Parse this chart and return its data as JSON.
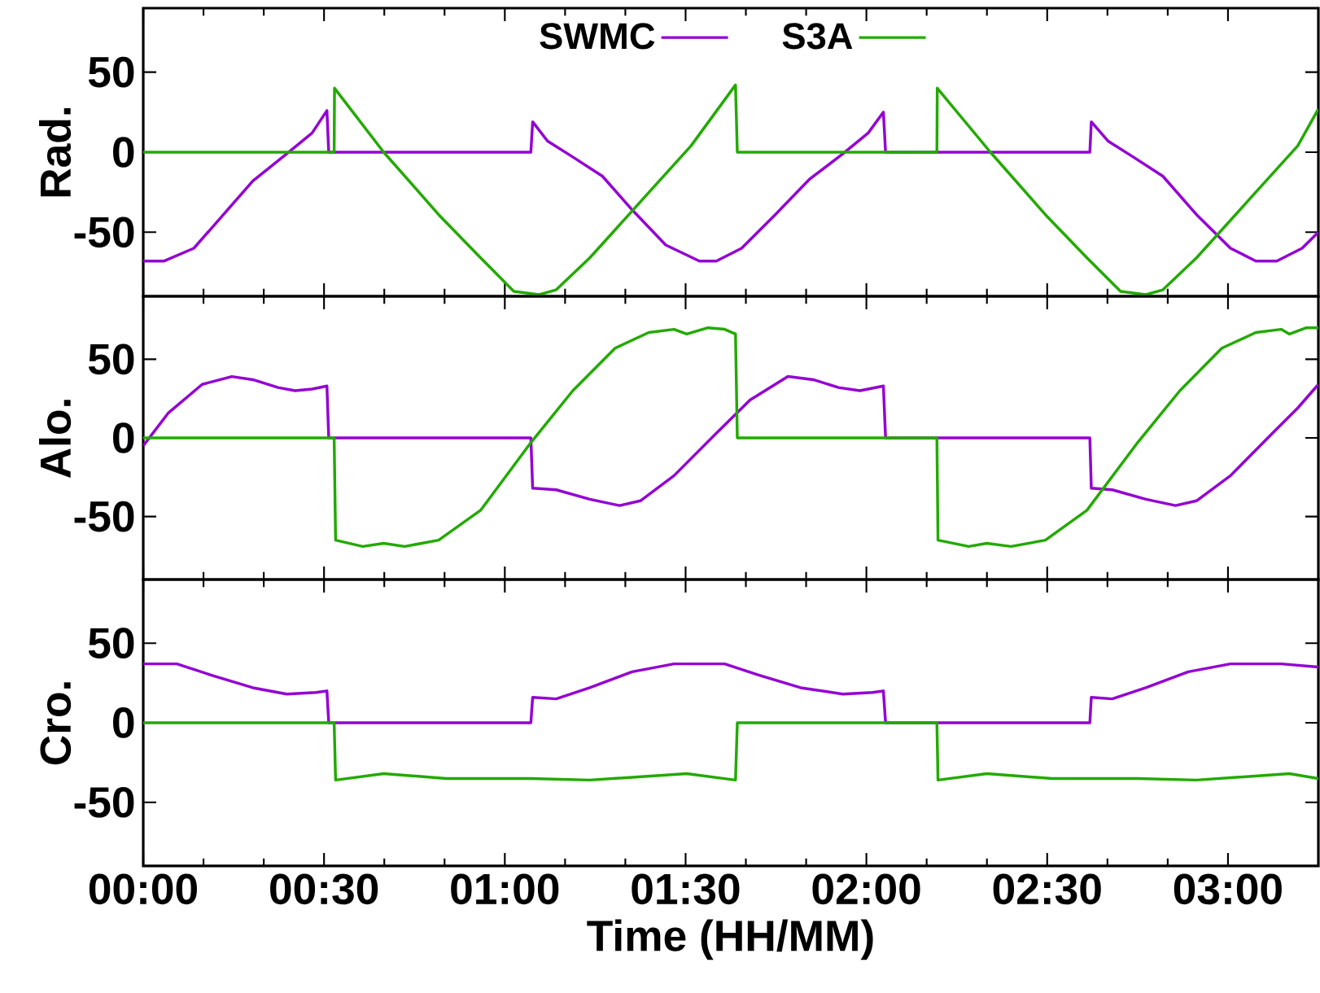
{
  "chart_data": [
    {
      "type": "line",
      "ylabel": "Rad.",
      "xlim": [
        0,
        3.25
      ],
      "ylim": [
        -90,
        90
      ],
      "yticks": [
        -50,
        0,
        50
      ],
      "tick_labels": "y",
      "legend": "top",
      "grid": false,
      "xticks": [
        {
          "value": 0,
          "label": null
        },
        {
          "value": 0.5,
          "label": null
        },
        {
          "value": 1,
          "label": null
        },
        {
          "value": 1.5,
          "label": null
        },
        {
          "value": 2,
          "label": null
        },
        {
          "value": 2.5,
          "label": null
        },
        {
          "value": 3,
          "label": null
        }
      ],
      "series": [
        {
          "name": "SWMC",
          "color": "#9400d3",
          "x": [
            0,
            0.058,
            0.14,
            0.21,
            0.303,
            0.397,
            0.467,
            0.508,
            0.513,
            1.072,
            1.077,
            1.118,
            1.188,
            1.27,
            1.352,
            1.445,
            1.538,
            1.585,
            1.655,
            1.748,
            1.842,
            1.935,
            2.005,
            2.047,
            2.053,
            2.618,
            2.622,
            2.668,
            2.738,
            2.82,
            2.913,
            3.007,
            3.077,
            3.135,
            3.205,
            3.25
          ],
          "values": [
            -68,
            -68,
            -60,
            -42,
            -18,
            -1,
            12,
            26,
            0,
            0,
            19,
            7,
            -3,
            -15,
            -36,
            -58,
            -68,
            -68,
            -60,
            -39,
            -17,
            -1,
            12,
            25,
            0,
            0,
            19,
            7,
            -3,
            -15,
            -39,
            -60,
            -68,
            -68,
            -60,
            -50
          ]
        },
        {
          "name": "S3A",
          "color": "#22aa00",
          "x": [
            0,
            0.528,
            0.529,
            0.665,
            0.817,
            0.933,
            1.025,
            1.095,
            1.142,
            1.235,
            1.375,
            1.515,
            1.638,
            1.643,
            2.195,
            2.196,
            2.343,
            2.495,
            2.61,
            2.703,
            2.773,
            2.82,
            2.913,
            3.053,
            3.193,
            3.25
          ],
          "values": [
            0,
            0,
            40,
            0,
            -39,
            -66,
            -87,
            -89,
            -86,
            -66,
            -31,
            4,
            42,
            0,
            0,
            40,
            0,
            -39,
            -66,
            -87,
            -89,
            -86,
            -66,
            -31,
            4,
            27
          ]
        }
      ]
    },
    {
      "type": "line",
      "ylabel": "Alo.",
      "xlim": [
        0,
        3.25
      ],
      "ylim": [
        -90,
        90
      ],
      "yticks": [
        -50,
        0,
        50
      ],
      "tick_labels": "y",
      "grid": false,
      "xticks": [
        {
          "value": 0,
          "label": null
        },
        {
          "value": 0.5,
          "label": null
        },
        {
          "value": 1,
          "label": null
        },
        {
          "value": 1.5,
          "label": null
        },
        {
          "value": 2,
          "label": null
        },
        {
          "value": 2.5,
          "label": null
        },
        {
          "value": 3,
          "label": null
        }
      ],
      "series": [
        {
          "color": "#9400d3",
          "x": [
            0,
            0.07,
            0.163,
            0.245,
            0.303,
            0.373,
            0.42,
            0.467,
            0.508,
            0.513,
            1.072,
            1.077,
            1.142,
            1.235,
            1.317,
            1.375,
            1.468,
            1.585,
            1.678,
            1.783,
            1.853,
            1.923,
            1.982,
            2.047,
            2.053,
            2.618,
            2.622,
            2.68,
            2.773,
            2.855,
            2.913,
            3.007,
            3.123,
            3.193,
            3.25
          ],
          "values": [
            -5,
            16,
            34,
            39,
            37,
            32,
            30,
            31,
            33,
            0,
            0,
            -32,
            -33,
            -39,
            -43,
            -40,
            -24,
            3,
            24,
            39,
            37,
            32,
            30,
            33,
            0,
            0,
            -32,
            -33,
            -39,
            -43,
            -40,
            -24,
            3,
            19,
            34
          ]
        },
        {
          "color": "#22aa00",
          "x": [
            0,
            0.528,
            0.532,
            0.607,
            0.665,
            0.723,
            0.817,
            0.933,
            1.072,
            1.188,
            1.305,
            1.398,
            1.468,
            1.503,
            1.562,
            1.608,
            1.638,
            1.643,
            2.195,
            2.198,
            2.283,
            2.333,
            2.4,
            2.495,
            2.61,
            2.75,
            2.867,
            2.983,
            3.077,
            3.147,
            3.17,
            3.217,
            3.25
          ],
          "values": [
            0,
            0,
            -65,
            -69,
            -67,
            -69,
            -65,
            -46,
            -3,
            30,
            57,
            67,
            69,
            66,
            70,
            69,
            66,
            0,
            0,
            -65,
            -69,
            -67,
            -69,
            -65,
            -46,
            -3,
            30,
            57,
            67,
            69,
            66,
            70,
            70
          ]
        }
      ]
    },
    {
      "type": "line",
      "ylabel": "Cro.",
      "xlabel": "Time (HH/MM)",
      "xlim": [
        0,
        3.25
      ],
      "ylim": [
        -90,
        90
      ],
      "yticks": [
        -50,
        0,
        50
      ],
      "grid": false,
      "xticks": [
        {
          "value": 0,
          "label": "00:00"
        },
        {
          "value": 0.5,
          "label": "00:30"
        },
        {
          "value": 1,
          "label": "01:00"
        },
        {
          "value": 1.5,
          "label": "01:30"
        },
        {
          "value": 2,
          "label": "02:00"
        },
        {
          "value": 2.5,
          "label": "02:30"
        },
        {
          "value": 3,
          "label": "03:00"
        }
      ],
      "series": [
        {
          "color": "#9400d3",
          "x": [
            0,
            0.093,
            0.187,
            0.303,
            0.397,
            0.478,
            0.508,
            0.513,
            1.072,
            1.077,
            1.142,
            1.235,
            1.352,
            1.468,
            1.608,
            1.702,
            1.818,
            1.935,
            2.017,
            2.047,
            2.053,
            2.618,
            2.622,
            2.68,
            2.773,
            2.89,
            3.007,
            3.147,
            3.25
          ],
          "values": [
            37,
            37,
            30,
            22,
            18,
            19,
            20,
            0,
            0,
            16,
            15,
            22,
            32,
            37,
            37,
            30,
            22,
            18,
            19,
            20,
            0,
            0,
            16,
            15,
            22,
            32,
            37,
            37,
            35
          ]
        },
        {
          "color": "#22aa00",
          "x": [
            0,
            0.528,
            0.532,
            0.665,
            0.838,
            1.072,
            1.235,
            1.503,
            1.638,
            1.643,
            2.195,
            2.198,
            2.333,
            2.513,
            2.75,
            2.913,
            3.17,
            3.25
          ],
          "values": [
            0,
            0,
            -36,
            -32,
            -35,
            -35,
            -36,
            -32,
            -36,
            0,
            0,
            -36,
            -32,
            -35,
            -35,
            -36,
            -32,
            -35
          ]
        }
      ]
    }
  ]
}
